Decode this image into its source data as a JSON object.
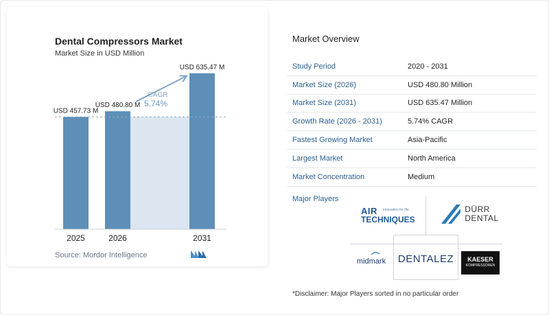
{
  "left_card": {
    "title": "Dental Compressors Market",
    "subtitle": "Market Size in USD Million",
    "source": "Source: Mordor Intelligence"
  },
  "chart_data": {
    "type": "bar",
    "title": "Dental Compressors Market",
    "subtitle": "Market Size in USD Million",
    "categories": [
      "2025",
      "2026",
      "2031"
    ],
    "values": [
      457.73,
      480.8,
      635.47
    ],
    "data_labels": [
      "USD 457.73 M",
      "USD 480.80 M",
      "USD 635.47 M"
    ],
    "cagr_label": "CAGR",
    "cagr_value": "5.74%",
    "ylim": [
      0,
      660
    ],
    "grid": false,
    "bar_color": "#5e8fb8",
    "band_color": "#dbe6f1"
  },
  "overview": {
    "title": "Market Overview",
    "rows": [
      {
        "label": "Study Period",
        "value": "2020 - 2031"
      },
      {
        "label": "Market Size (2026)",
        "value": "USD 480.80 Million"
      },
      {
        "label": "Market Size (2031)",
        "value": "USD 635.47 Million"
      },
      {
        "label": "Growth Rate (2026 - 2031)",
        "value": "5.74% CAGR"
      },
      {
        "label": "Fastest Growing Market",
        "value": "Asia-Pacific"
      },
      {
        "label": "Largest Market",
        "value": "North America"
      },
      {
        "label": "Market Concentration",
        "value": "Medium"
      }
    ],
    "players_title": "Major Players",
    "players": {
      "air_techniques": {
        "top": "AIR",
        "bottom": "TECHNIQUES",
        "tag": "innovation for life"
      },
      "durr": {
        "line1": "DÜRR",
        "line2": "DENTAL"
      },
      "midmark": "midmark",
      "dentalez": "DENTALEZ",
      "kaeser": {
        "line1": "KAESER",
        "line2": "KOMPRESSOREN"
      }
    },
    "disclaimer": "*Disclaimer: Major Players sorted in no particular order"
  }
}
